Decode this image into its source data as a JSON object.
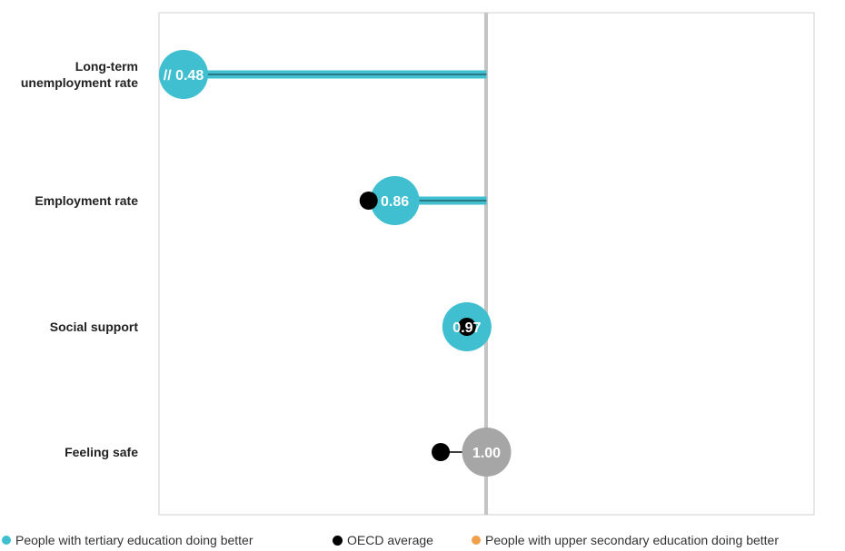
{
  "chart_data": {
    "type": "dot",
    "reference_value": 1.0,
    "xlim": [
      0.5,
      1.5
    ],
    "categories": [
      "Long-term unemployment rate",
      "Employment rate",
      "Social support",
      "Feeling safe"
    ],
    "category_label_lines": [
      [
        "Long-term",
        "unemployment rate"
      ],
      [
        "Employment rate"
      ],
      [
        "Social support"
      ],
      [
        "Feeling safe"
      ]
    ],
    "series": [
      {
        "name": "People with tertiary education doing better",
        "values": [
          0.48,
          0.86,
          0.97,
          1.0
        ],
        "labels": [
          "// 0.48",
          "0.86",
          "0.97",
          "1.00"
        ],
        "color": "#3fbfd0"
      },
      {
        "name": "OECD average",
        "values": [
          null,
          0.82,
          0.97,
          0.93
        ],
        "color": "#000000"
      },
      {
        "name": "People with upper secondary education doing better",
        "values": [
          null,
          null,
          null,
          null
        ],
        "color": "#f0a04b"
      }
    ],
    "neutral_color": "#a6a6a6",
    "axis_break_on": [
      "Long-term unemployment rate"
    ]
  },
  "legend": [
    {
      "label": "People with tertiary education doing better",
      "color": "#3fbfd0"
    },
    {
      "label": "OECD average",
      "color": "#000000"
    },
    {
      "label": "People with upper secondary education doing better",
      "color": "#f0a04b"
    }
  ]
}
